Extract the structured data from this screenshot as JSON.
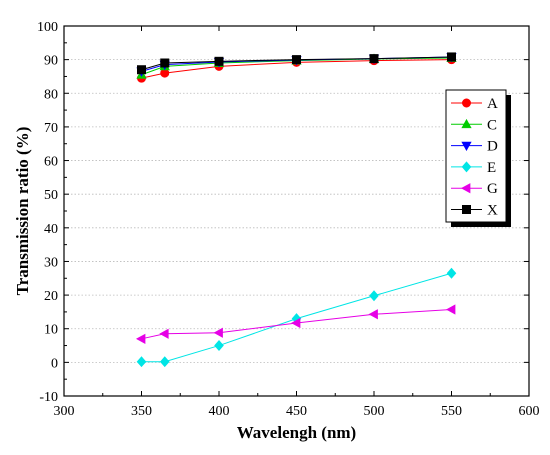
{
  "chart_data": {
    "type": "line",
    "xlabel": "Wavelengh (nm)",
    "ylabel": "Transmission ratio  (%)",
    "xlim": [
      300,
      600
    ],
    "ylim": [
      -10,
      100
    ],
    "xticks": [
      300,
      350,
      400,
      450,
      500,
      550,
      600
    ],
    "yticks": [
      -10,
      0,
      10,
      20,
      30,
      40,
      50,
      60,
      70,
      80,
      90,
      100
    ],
    "grid": "horizontal dotted",
    "legend_position": "right",
    "series": [
      {
        "name": "A",
        "color": "#ff0000",
        "marker": "circle",
        "x": [
          350,
          365,
          400,
          450,
          500,
          550
        ],
        "y": [
          84.5,
          86.0,
          88.0,
          89.2,
          89.7,
          90.0
        ]
      },
      {
        "name": "C",
        "color": "#00cc00",
        "marker": "triangle-up",
        "x": [
          350,
          365,
          400,
          450,
          500,
          550
        ],
        "y": [
          85.5,
          88.0,
          89.0,
          89.7,
          90.2,
          90.5
        ]
      },
      {
        "name": "D",
        "color": "#0000ff",
        "marker": "triangle-down",
        "x": [
          350,
          365,
          400,
          450,
          500,
          550
        ],
        "y": [
          86.5,
          88.5,
          89.3,
          89.9,
          90.3,
          90.8
        ]
      },
      {
        "name": "E",
        "color": "#00e5e5",
        "marker": "diamond",
        "x": [
          350,
          365,
          400,
          450,
          500,
          550
        ],
        "y": [
          0.2,
          0.2,
          5.0,
          13.0,
          19.8,
          26.5
        ]
      },
      {
        "name": "G",
        "color": "#e600e6",
        "marker": "triangle-left",
        "x": [
          350,
          365,
          400,
          450,
          500,
          550
        ],
        "y": [
          7.0,
          8.5,
          8.8,
          11.7,
          14.3,
          15.7
        ]
      },
      {
        "name": "X",
        "color": "#000000",
        "marker": "square",
        "x": [
          350,
          365,
          400,
          450,
          500,
          550
        ],
        "y": [
          87.0,
          89.0,
          89.5,
          90.0,
          90.3,
          90.8
        ]
      }
    ]
  }
}
